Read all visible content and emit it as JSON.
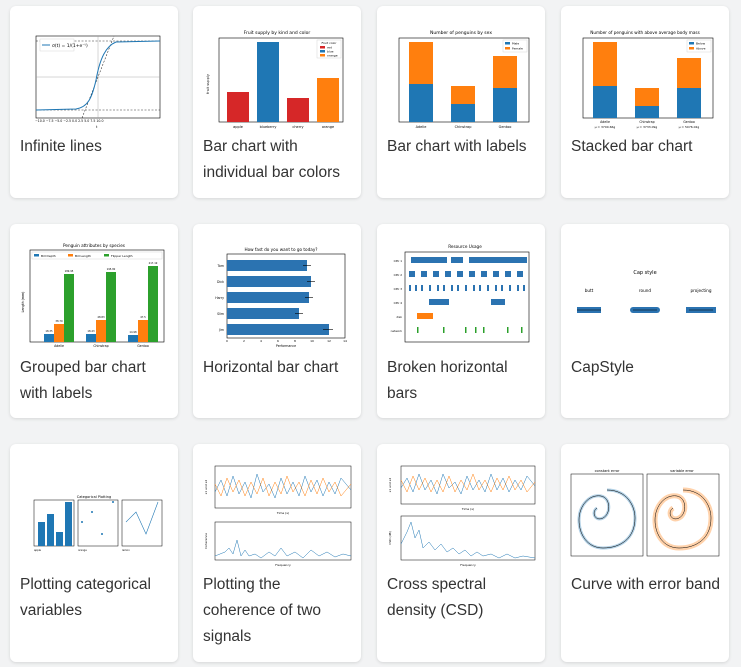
{
  "gallery": [
    {
      "title": "Infinite lines",
      "icon": "infinite-lines-thumbnail-icon"
    },
    {
      "title": "Bar chart with individual bar colors",
      "icon": "bar-colors-thumbnail-icon"
    },
    {
      "title": "Bar chart with labels",
      "icon": "bar-labels-thumbnail-icon"
    },
    {
      "title": "Stacked bar chart",
      "icon": "stacked-bar-thumbnail-icon"
    },
    {
      "title": "Grouped bar chart with labels",
      "icon": "grouped-bar-thumbnail-icon"
    },
    {
      "title": "Horizontal bar chart",
      "icon": "horizontal-bar-thumbnail-icon"
    },
    {
      "title": "Broken horizontal bars",
      "icon": "broken-barh-thumbnail-icon"
    },
    {
      "title": "CapStyle",
      "icon": "capstyle-thumbnail-icon"
    },
    {
      "title": "Plotting categorical variables",
      "icon": "categorical-thumbnail-icon"
    },
    {
      "title": "Plotting the coherence of two signals",
      "icon": "coherence-thumbnail-icon"
    },
    {
      "title": "Cross spectral density (CSD)",
      "icon": "csd-thumbnail-icon"
    },
    {
      "title": "Curve with error band",
      "icon": "error-band-thumbnail-icon"
    }
  ],
  "thumbs": {
    "bar_colors": {
      "title": "Fruit supply by kind and color",
      "ylabel": "fruit supply",
      "categories": [
        "apple",
        "blueberry",
        "cherry",
        "orange"
      ],
      "legend_title": "Fruit color",
      "legend": [
        "red",
        "blue",
        "orange"
      ]
    },
    "bar_labels": {
      "title": "Number of penguins by sex",
      "categories": [
        "Adelie",
        "Chinstrap",
        "Gentoo"
      ],
      "legend": [
        "Male",
        "Female"
      ]
    },
    "stacked": {
      "title": "Number of penguins with above average body mass",
      "categories": [
        "Adelie",
        "Chinstrap",
        "Gentoo"
      ],
      "legend": [
        "Below",
        "Above"
      ],
      "sub": [
        "μ = 3700.66g",
        "μ = 3733.09g",
        "μ = 5076.02g"
      ]
    },
    "grouped": {
      "title": "Penguin attributes by species",
      "ylabel": "Length (mm)",
      "legend": [
        "Bill Depth",
        "Bill Length",
        "Flipper Length"
      ],
      "categories": [
        "Adelie",
        "Chinstrap",
        "Gentoo"
      ],
      "labels": [
        "18.35",
        "38.79",
        "189.95",
        "18.43",
        "48.83",
        "195.82",
        "14.98",
        "47.5",
        "217.19"
      ]
    },
    "hbar": {
      "title": "How fast do you want to go today?",
      "people": [
        "Tom",
        "Dick",
        "Harry",
        "Slim",
        "Jim"
      ],
      "xlabel": "Performance",
      "ticks": [
        "0",
        "2",
        "4",
        "6",
        "8",
        "10",
        "12",
        "14"
      ]
    },
    "broken": {
      "title": "Resource Usage",
      "rows": [
        "CPU 1",
        "CPU 2",
        "CPU 3",
        "CPU 4",
        "disk",
        "network"
      ]
    },
    "capstyle": {
      "title": "Cap style",
      "styles": [
        "butt",
        "round",
        "projecting"
      ]
    },
    "categorical": {
      "title": "Categorical Plotting",
      "cats": [
        "apple",
        "orange",
        "lemon",
        "lime"
      ]
    },
    "coherence": {
      "ylabel1": "s1 and s2",
      "xlabel1": "Time (s)",
      "ylabel2": "Coherence",
      "xlabel2": "Frequency"
    },
    "csd": {
      "ylabel1": "s1 and s2",
      "xlabel1": "Time (s)",
      "ylabel2": "CSD (dB)",
      "xlabel2": "Frequency"
    },
    "errorband": {
      "left": "constant error",
      "right": "variable error"
    }
  }
}
